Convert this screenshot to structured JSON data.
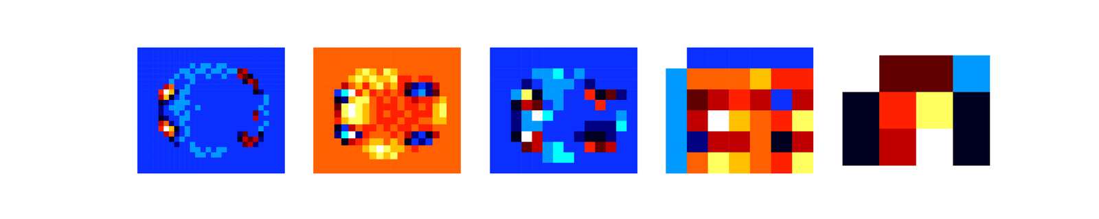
{
  "chart_data": [
    {
      "type": "heatmap",
      "zlim": [
        0,
        11
      ],
      "tick_labels": false,
      "cells": [
        [
          2,
          2,
          2,
          2,
          2,
          2,
          2,
          2,
          2,
          2,
          2,
          2,
          2,
          2,
          2,
          2,
          2,
          2,
          2,
          2,
          2,
          2,
          2,
          2,
          2,
          2,
          2,
          2
        ],
        [
          2,
          2,
          2,
          2,
          2,
          2,
          2,
          2,
          2,
          2,
          2,
          2,
          2,
          2,
          2,
          2,
          2,
          2,
          2,
          2,
          2,
          2,
          2,
          2,
          2,
          2,
          2,
          2
        ],
        [
          2,
          2,
          2,
          2,
          2,
          2,
          2,
          2,
          2,
          2,
          2,
          2,
          2,
          2,
          2,
          2,
          2,
          2,
          2,
          2,
          2,
          2,
          2,
          2,
          2,
          2,
          2,
          2
        ],
        [
          2,
          2,
          2,
          2,
          2,
          2,
          2,
          2,
          2,
          2,
          1,
          2,
          1,
          1,
          2,
          1,
          1,
          2,
          2,
          2,
          2,
          2,
          2,
          2,
          2,
          2,
          2,
          2
        ],
        [
          2,
          2,
          2,
          2,
          2,
          2,
          2,
          2,
          1,
          1,
          2,
          1,
          1,
          2,
          1,
          1,
          2,
          1,
          1,
          5,
          6,
          2,
          2,
          2,
          2,
          2,
          2,
          2
        ],
        [
          2,
          2,
          2,
          2,
          2,
          2,
          2,
          1,
          2,
          1,
          1,
          2,
          2,
          1,
          2,
          2,
          1,
          2,
          2,
          6,
          5,
          4,
          2,
          2,
          2,
          2,
          2,
          2
        ],
        [
          2,
          2,
          2,
          2,
          2,
          2,
          1,
          2,
          2,
          2,
          1,
          2,
          2,
          2,
          2,
          2,
          2,
          2,
          2,
          2,
          4,
          6,
          5,
          2,
          2,
          2,
          2,
          2
        ],
        [
          2,
          2,
          2,
          2,
          2,
          6,
          8,
          2,
          2,
          1,
          2,
          2,
          2,
          2,
          2,
          2,
          2,
          2,
          2,
          2,
          2,
          2,
          5,
          2,
          2,
          2,
          2,
          2
        ],
        [
          2,
          2,
          2,
          2,
          7,
          11,
          9,
          3,
          1,
          1,
          2,
          2,
          2,
          2,
          2,
          2,
          2,
          2,
          2,
          2,
          2,
          2,
          4,
          3,
          2,
          2,
          2,
          2
        ],
        [
          2,
          2,
          2,
          2,
          6,
          9,
          4,
          2,
          1,
          2,
          2,
          2,
          2,
          2,
          2,
          2,
          2,
          2,
          2,
          2,
          2,
          2,
          2,
          2,
          1,
          2,
          2,
          2
        ],
        [
          2,
          2,
          2,
          2,
          4,
          3,
          2,
          1,
          1,
          1,
          2,
          2,
          2,
          2,
          2,
          2,
          2,
          2,
          2,
          2,
          2,
          2,
          2,
          2,
          1,
          2,
          2,
          2
        ],
        [
          2,
          2,
          2,
          2,
          3,
          2,
          1,
          1,
          1,
          2,
          2,
          1,
          2,
          2,
          2,
          2,
          2,
          2,
          2,
          2,
          2,
          2,
          2,
          1,
          2,
          2,
          2,
          2
        ],
        [
          2,
          2,
          2,
          2,
          3,
          2,
          2,
          1,
          2,
          1,
          2,
          2,
          2,
          2,
          2,
          2,
          2,
          2,
          2,
          2,
          2,
          2,
          5,
          2,
          1,
          2,
          2,
          2
        ],
        [
          2,
          2,
          2,
          2,
          4,
          3,
          2,
          2,
          1,
          1,
          2,
          2,
          2,
          2,
          2,
          2,
          2,
          2,
          2,
          2,
          2,
          2,
          6,
          2,
          2,
          2,
          2,
          2
        ],
        [
          2,
          2,
          2,
          2,
          6,
          8,
          3,
          2,
          1,
          2,
          2,
          2,
          2,
          2,
          2,
          2,
          2,
          2,
          2,
          2,
          2,
          2,
          2,
          2,
          1,
          2,
          2,
          2
        ],
        [
          2,
          2,
          2,
          2,
          7,
          11,
          9,
          4,
          2,
          1,
          2,
          2,
          2,
          2,
          2,
          2,
          2,
          2,
          2,
          2,
          2,
          2,
          2,
          1,
          2,
          2,
          2,
          2
        ],
        [
          2,
          2,
          2,
          2,
          2,
          6,
          8,
          3,
          2,
          1,
          2,
          2,
          2,
          2,
          2,
          2,
          2,
          2,
          2,
          3,
          5,
          2,
          2,
          4,
          2,
          2,
          2,
          2
        ],
        [
          2,
          2,
          2,
          2,
          2,
          2,
          4,
          2,
          1,
          2,
          2,
          2,
          2,
          2,
          2,
          2,
          2,
          2,
          2,
          4,
          6,
          5,
          6,
          3,
          2,
          2,
          2,
          2
        ],
        [
          2,
          2,
          2,
          2,
          2,
          2,
          2,
          3,
          2,
          2,
          1,
          2,
          2,
          2,
          2,
          2,
          2,
          2,
          2,
          2,
          5,
          6,
          3,
          2,
          2,
          2,
          2,
          2
        ],
        [
          2,
          2,
          2,
          2,
          2,
          2,
          2,
          2,
          2,
          2,
          1,
          1,
          2,
          1,
          2,
          1,
          1,
          2,
          2,
          2,
          2,
          2,
          2,
          2,
          2,
          2,
          2,
          2
        ],
        [
          2,
          2,
          2,
          2,
          2,
          2,
          2,
          2,
          2,
          2,
          2,
          1,
          1,
          2,
          1,
          1,
          2,
          2,
          2,
          2,
          2,
          2,
          2,
          2,
          2,
          2,
          2,
          2
        ],
        [
          2,
          2,
          2,
          2,
          2,
          2,
          2,
          2,
          2,
          2,
          2,
          2,
          2,
          2,
          2,
          2,
          2,
          2,
          2,
          2,
          2,
          2,
          2,
          2,
          2,
          2,
          2,
          2
        ],
        [
          2,
          2,
          2,
          2,
          2,
          2,
          2,
          2,
          2,
          2,
          2,
          2,
          2,
          2,
          2,
          2,
          2,
          2,
          2,
          2,
          2,
          2,
          2,
          2,
          2,
          2,
          2,
          2
        ],
        [
          2,
          2,
          2,
          2,
          2,
          2,
          2,
          2,
          2,
          2,
          2,
          2,
          2,
          2,
          2,
          2,
          2,
          2,
          2,
          2,
          2,
          2,
          2,
          2,
          2,
          2,
          2,
          2
        ]
      ]
    },
    {
      "type": "heatmap",
      "zlim": [
        0,
        11
      ],
      "tick_labels": false,
      "cells": [
        [
          8,
          8,
          8,
          8,
          8,
          8,
          8,
          8,
          8,
          8,
          8,
          8,
          8,
          8,
          8,
          8,
          8,
          8,
          8,
          8,
          8
        ],
        [
          8,
          8,
          8,
          8,
          8,
          8,
          8,
          8,
          8,
          8,
          8,
          8,
          8,
          8,
          8,
          8,
          8,
          8,
          8,
          8,
          8
        ],
        [
          8,
          8,
          8,
          8,
          8,
          8,
          8,
          8,
          8,
          8,
          8,
          8,
          8,
          8,
          8,
          8,
          8,
          8,
          8,
          8,
          8
        ],
        [
          8,
          8,
          8,
          8,
          8,
          8,
          9,
          10,
          9,
          8,
          10,
          9,
          8,
          8,
          8,
          8,
          8,
          8,
          8,
          8,
          8
        ],
        [
          8,
          8,
          8,
          8,
          8,
          9,
          10,
          9,
          10,
          9,
          9,
          10,
          7,
          7,
          8,
          7,
          7,
          8,
          8,
          8,
          8
        ],
        [
          8,
          8,
          8,
          8,
          6,
          8,
          9,
          7,
          9,
          10,
          8,
          9,
          7,
          5,
          3,
          2,
          3,
          6,
          8,
          8,
          8
        ],
        [
          8,
          8,
          8,
          2,
          0,
          11,
          7,
          9,
          7,
          8,
          7,
          8,
          7,
          4,
          2,
          1,
          3,
          5,
          8,
          8,
          8
        ],
        [
          8,
          8,
          8,
          4,
          3,
          9,
          10,
          10,
          8,
          7,
          8,
          7,
          8,
          7,
          6,
          7,
          7,
          8,
          9,
          8,
          8
        ],
        [
          8,
          8,
          8,
          5,
          10,
          11,
          10,
          9,
          8,
          7,
          7,
          7,
          8,
          7,
          7,
          8,
          7,
          9,
          10,
          8,
          8
        ],
        [
          8,
          8,
          8,
          6,
          10,
          11,
          10,
          9,
          8,
          7,
          8,
          7,
          7,
          8,
          7,
          7,
          7,
          9,
          10,
          8,
          8
        ],
        [
          8,
          8,
          8,
          7,
          9,
          10,
          10,
          9,
          8,
          7,
          7,
          7,
          8,
          7,
          7,
          8,
          8,
          9,
          9,
          8,
          8
        ],
        [
          8,
          8,
          8,
          4,
          2,
          6,
          8,
          7,
          7,
          8,
          7,
          8,
          7,
          7,
          8,
          7,
          7,
          8,
          8,
          8,
          8
        ],
        [
          8,
          8,
          8,
          3,
          0,
          11,
          3,
          7,
          8,
          8,
          8,
          7,
          8,
          6,
          3,
          2,
          4,
          6,
          8,
          8,
          8
        ],
        [
          8,
          8,
          8,
          8,
          4,
          6,
          7,
          8,
          9,
          9,
          8,
          9,
          8,
          4,
          2,
          3,
          2,
          8,
          8,
          8,
          8
        ],
        [
          8,
          8,
          8,
          8,
          8,
          8,
          8,
          9,
          10,
          11,
          10,
          9,
          9,
          8,
          7,
          8,
          8,
          8,
          8,
          8,
          8
        ],
        [
          8,
          8,
          8,
          8,
          8,
          8,
          8,
          8,
          9,
          10,
          9,
          10,
          8,
          8,
          8,
          8,
          8,
          8,
          8,
          8,
          8
        ],
        [
          8,
          8,
          8,
          8,
          8,
          8,
          8,
          8,
          8,
          8,
          8,
          8,
          8,
          8,
          8,
          8,
          8,
          8,
          8,
          8,
          8
        ],
        [
          8,
          8,
          8,
          8,
          8,
          8,
          8,
          8,
          8,
          8,
          8,
          8,
          8,
          8,
          8,
          8,
          8,
          8,
          8,
          8,
          8
        ]
      ]
    },
    {
      "type": "heatmap",
      "zlim": [
        0,
        11
      ],
      "tick_labels": false,
      "cells": [
        [
          2,
          2,
          2,
          2,
          2,
          2,
          2,
          2,
          2,
          2,
          2,
          2,
          2,
          2
        ],
        [
          2,
          2,
          2,
          2,
          2,
          2,
          2,
          2,
          2,
          2,
          2,
          2,
          2,
          2
        ],
        [
          2,
          2,
          2,
          2,
          1,
          1,
          0,
          2,
          1,
          2,
          2,
          2,
          2,
          2
        ],
        [
          2,
          2,
          2,
          3,
          2,
          1,
          1,
          1,
          2,
          3,
          2,
          2,
          2,
          2
        ],
        [
          2,
          2,
          1,
          10,
          4,
          1,
          1,
          2,
          2,
          7,
          4,
          5,
          3,
          2
        ],
        [
          2,
          2,
          4,
          6,
          5,
          2,
          1,
          2,
          2,
          2,
          7,
          2,
          2,
          2
        ],
        [
          2,
          2,
          3,
          1,
          11,
          0,
          2,
          2,
          2,
          2,
          2,
          2,
          1,
          2
        ],
        [
          2,
          2,
          3,
          1,
          1,
          2,
          2,
          2,
          2,
          3,
          3,
          3,
          0,
          2
        ],
        [
          2,
          2,
          4,
          11,
          6,
          2,
          2,
          2,
          3,
          4,
          4,
          3,
          2,
          2
        ],
        [
          2,
          2,
          2,
          5,
          6,
          1,
          0,
          2,
          2,
          7,
          5,
          6,
          2,
          2
        ],
        [
          2,
          2,
          2,
          2,
          2,
          1,
          0,
          0,
          2,
          2,
          2,
          2,
          2,
          2
        ],
        [
          2,
          2,
          2,
          2,
          2,
          2,
          2,
          2,
          2,
          2,
          2,
          2,
          2,
          2
        ]
      ]
    },
    {
      "type": "heatmap",
      "zlim": [
        0,
        11
      ],
      "tick_labels": false,
      "cells": [
        [
          null,
          2,
          2,
          2,
          2,
          2,
          2
        ],
        [
          1,
          8,
          8,
          8,
          9,
          7,
          7
        ],
        [
          1,
          5,
          6,
          7,
          6,
          2,
          6
        ],
        [
          1,
          6,
          11,
          9,
          8,
          7,
          10
        ],
        [
          1,
          3,
          6,
          6,
          8,
          4,
          6
        ],
        [
          1,
          8,
          10,
          9,
          8,
          7,
          10
        ]
      ]
    },
    {
      "type": "heatmap",
      "zlim": [
        0,
        11
      ],
      "tick_labels": false,
      "cells": [
        [
          null,
          5,
          5,
          1
        ],
        [
          4,
          7,
          10,
          4
        ],
        [
          4,
          6,
          11,
          4
        ]
      ]
    }
  ]
}
